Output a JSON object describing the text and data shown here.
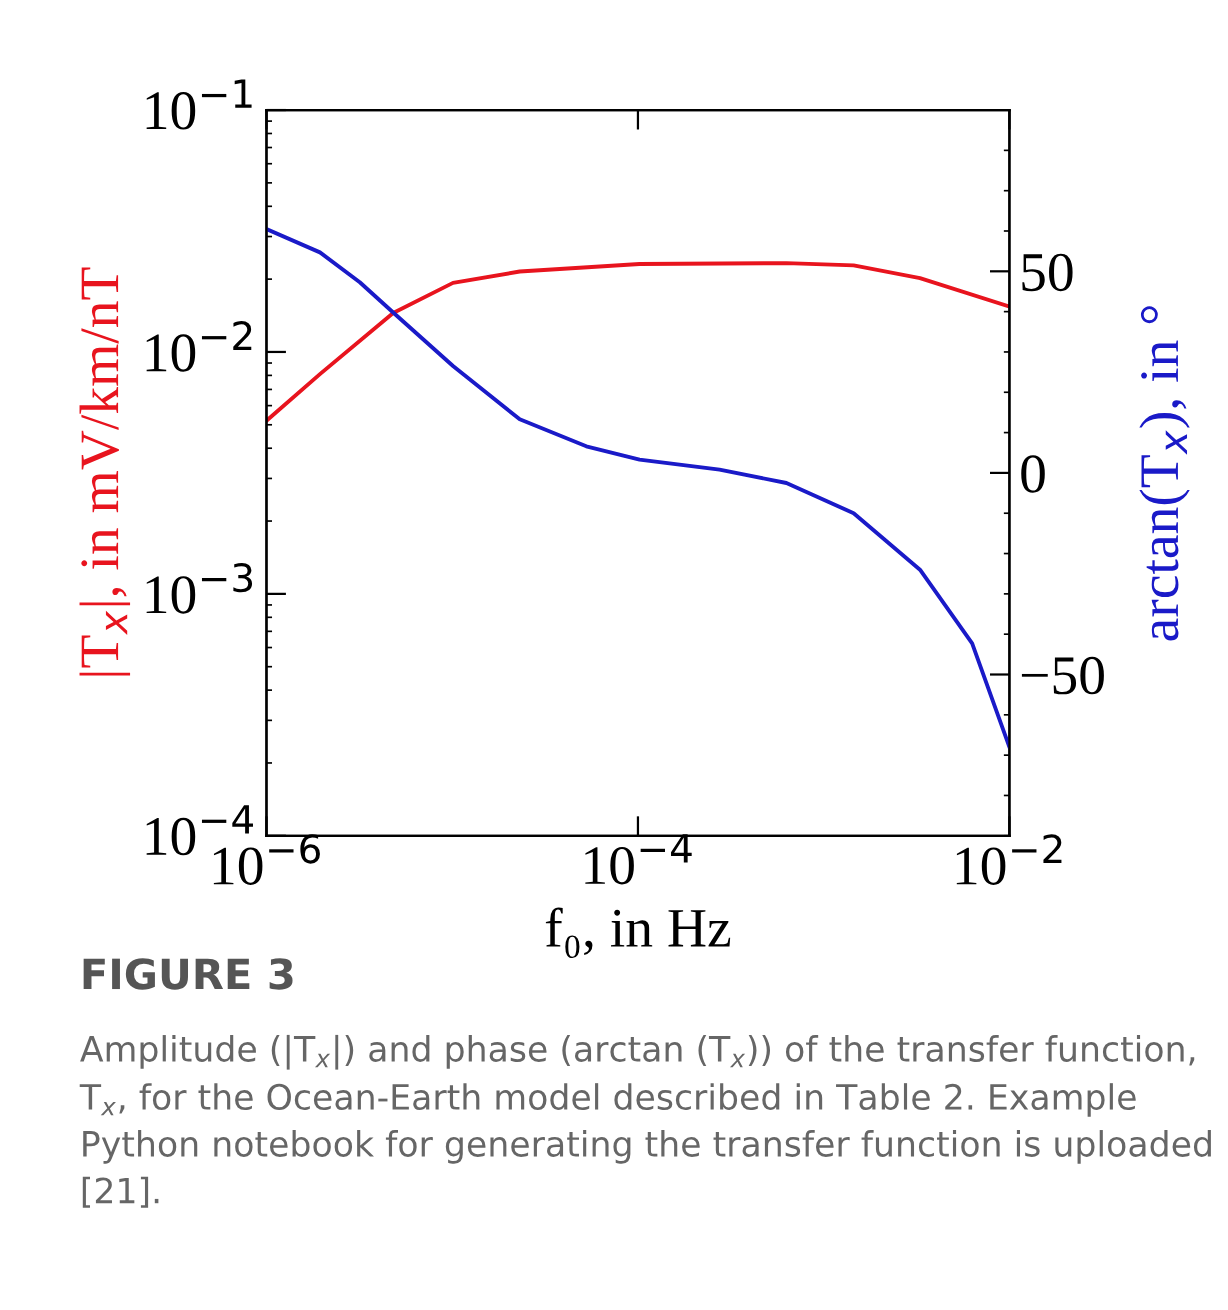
{
  "chart_data": {
    "type": "line",
    "xlabel": "f₀, in Hz",
    "ylabel": "|T$_{x}$|, in mV/km/nT",
    "y2label": "arctan(T$_{x}$), in °",
    "log": "xy",
    "grid": false,
    "marker": "none",
    "line_style": "solid",
    "xlim": [
      1e-06,
      0.01
    ],
    "xticks": [
      {
        "value": 1e-06,
        "label": "10$^{−6}$"
      },
      {
        "value": 0.0001,
        "label": "10$^{−4}$"
      },
      {
        "value": 0.01,
        "label": "10$^{−2}$"
      }
    ],
    "ylim": [
      0.0001,
      0.1
    ],
    "yticks": [
      {
        "value": 0.0001,
        "label": "10$^{−4}$"
      },
      {
        "value": 0.001,
        "label": "10$^{−3}$"
      },
      {
        "value": 0.01,
        "label": "10$^{−2}$"
      },
      {
        "value": 0.1,
        "label": "10$^{−1}$"
      }
    ],
    "y2lim": [
      -90,
      90
    ],
    "y2ticks": [
      {
        "value": -50,
        "label": "−50"
      },
      0,
      50
    ],
    "series": [
      {
        "color": "#e8141e",
        "x": [
          1e-06,
          1.94e-06,
          4.81e-06,
          1.01e-05,
          2.31e-05,
          0.000102,
          0.00063,
          0.00145,
          0.0033,
          0.01
        ],
        "values": [
          0.0052,
          0.0081,
          0.0145,
          0.0193,
          0.0215,
          0.0231,
          0.0233,
          0.0228,
          0.0202,
          0.0154
        ]
      },
      {
        "color": "#1a1ac8",
        "axis": "y2",
        "x": [
          1e-06,
          1.94e-06,
          3.18e-06,
          4.81e-06,
          1.01e-05,
          2.31e-05,
          5.27e-05,
          0.000102,
          0.000275,
          0.00063,
          0.00145,
          0.0033,
          0.0063,
          0.01
        ],
        "values": [
          60.5,
          54.7,
          47.3,
          39.8,
          26.5,
          13.3,
          6.6,
          3.3,
          0.8,
          -2.5,
          -10,
          -24,
          -42.3,
          -68
        ]
      }
    ],
    "annotations": [
      "FIGURE 3",
      "Amplitude (|T$_{x}$|) and phase (arctan (T$_{x}$)) of the transfer function, T$_{x}$, for the Ocean-Earth model described in Table 2. Example Python notebook for generating the transfer function is uploaded [21]."
    ]
  }
}
